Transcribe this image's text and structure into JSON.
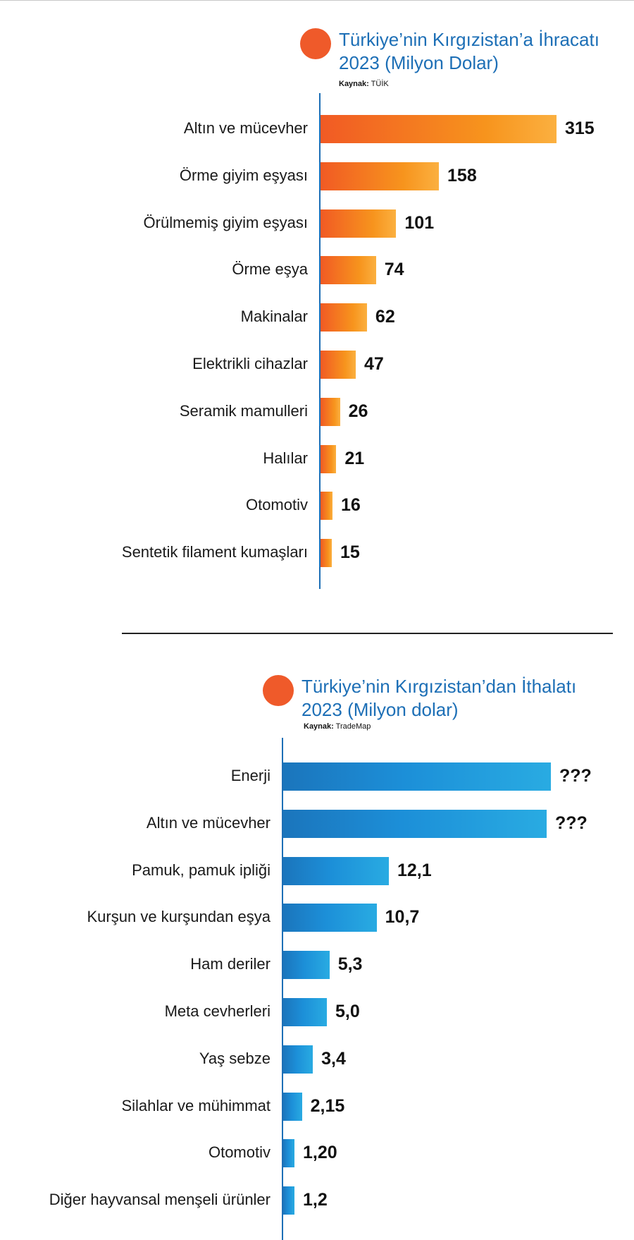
{
  "chart_data": [
    {
      "type": "bar",
      "orientation": "horizontal",
      "title": "Türkiye’nin Kırgızistan’a İhracatı",
      "subtitle": "2023 (Milyon Dolar)",
      "source_label": "Kaynak:",
      "source": "TÜİK",
      "categories": [
        "Altın ve mücevher",
        "Örme giyim eşyası",
        "Örülmemiş giyim eşyası",
        "Örme eşya",
        "Makinalar",
        "Elektrikli cihazlar",
        "Seramik mamulleri",
        "Halılar",
        "Otomotiv",
        "Sentetik filament kumaşları"
      ],
      "values": [
        315,
        158,
        101,
        74,
        62,
        47,
        26,
        21,
        16,
        15
      ],
      "value_labels": [
        "315",
        "158",
        "101",
        "74",
        "62",
        "47",
        "26",
        "21",
        "16",
        "15"
      ],
      "xlim": [
        0,
        315
      ],
      "grid": false,
      "colors": {
        "bar_start": "#f15a24",
        "bar_end": "#fbb040",
        "axis": "#1d6fb6",
        "title": "#1d6fb6",
        "dot": "#ef5a2a"
      }
    },
    {
      "type": "bar",
      "orientation": "horizontal",
      "title": "Türkiye’nin Kırgızistan’dan İthalatı",
      "subtitle": "2023 (Milyon dolar)",
      "source_label": "Kaynak:",
      "source": "TradeMap",
      "categories": [
        "Enerji",
        "Altın ve mücevher",
        "Pamuk, pamuk ipliği",
        "Kurşun ve kurşundan eşya",
        "Ham deriler",
        "Meta cevherleri",
        "Yaş sebze",
        "Silahlar ve mühimmat",
        "Otomotiv",
        "Diğer hayvansal menşeli ürünler"
      ],
      "values": [
        null,
        null,
        12.1,
        10.7,
        5.3,
        5.0,
        3.4,
        2.15,
        1.2,
        1.2
      ],
      "value_labels": [
        "???",
        "???",
        "12,1",
        "10,7",
        "5,3",
        "5,0",
        "3,4",
        "2,15",
        "1,20",
        "1,2"
      ],
      "xlim": [
        0,
        12.1
      ],
      "grid": false,
      "colors": {
        "bar_start": "#1b75bc",
        "bar_end": "#29abe2",
        "axis": "#1d6fb6",
        "title": "#1d6fb6",
        "dot": "#ef5a2a"
      }
    }
  ]
}
